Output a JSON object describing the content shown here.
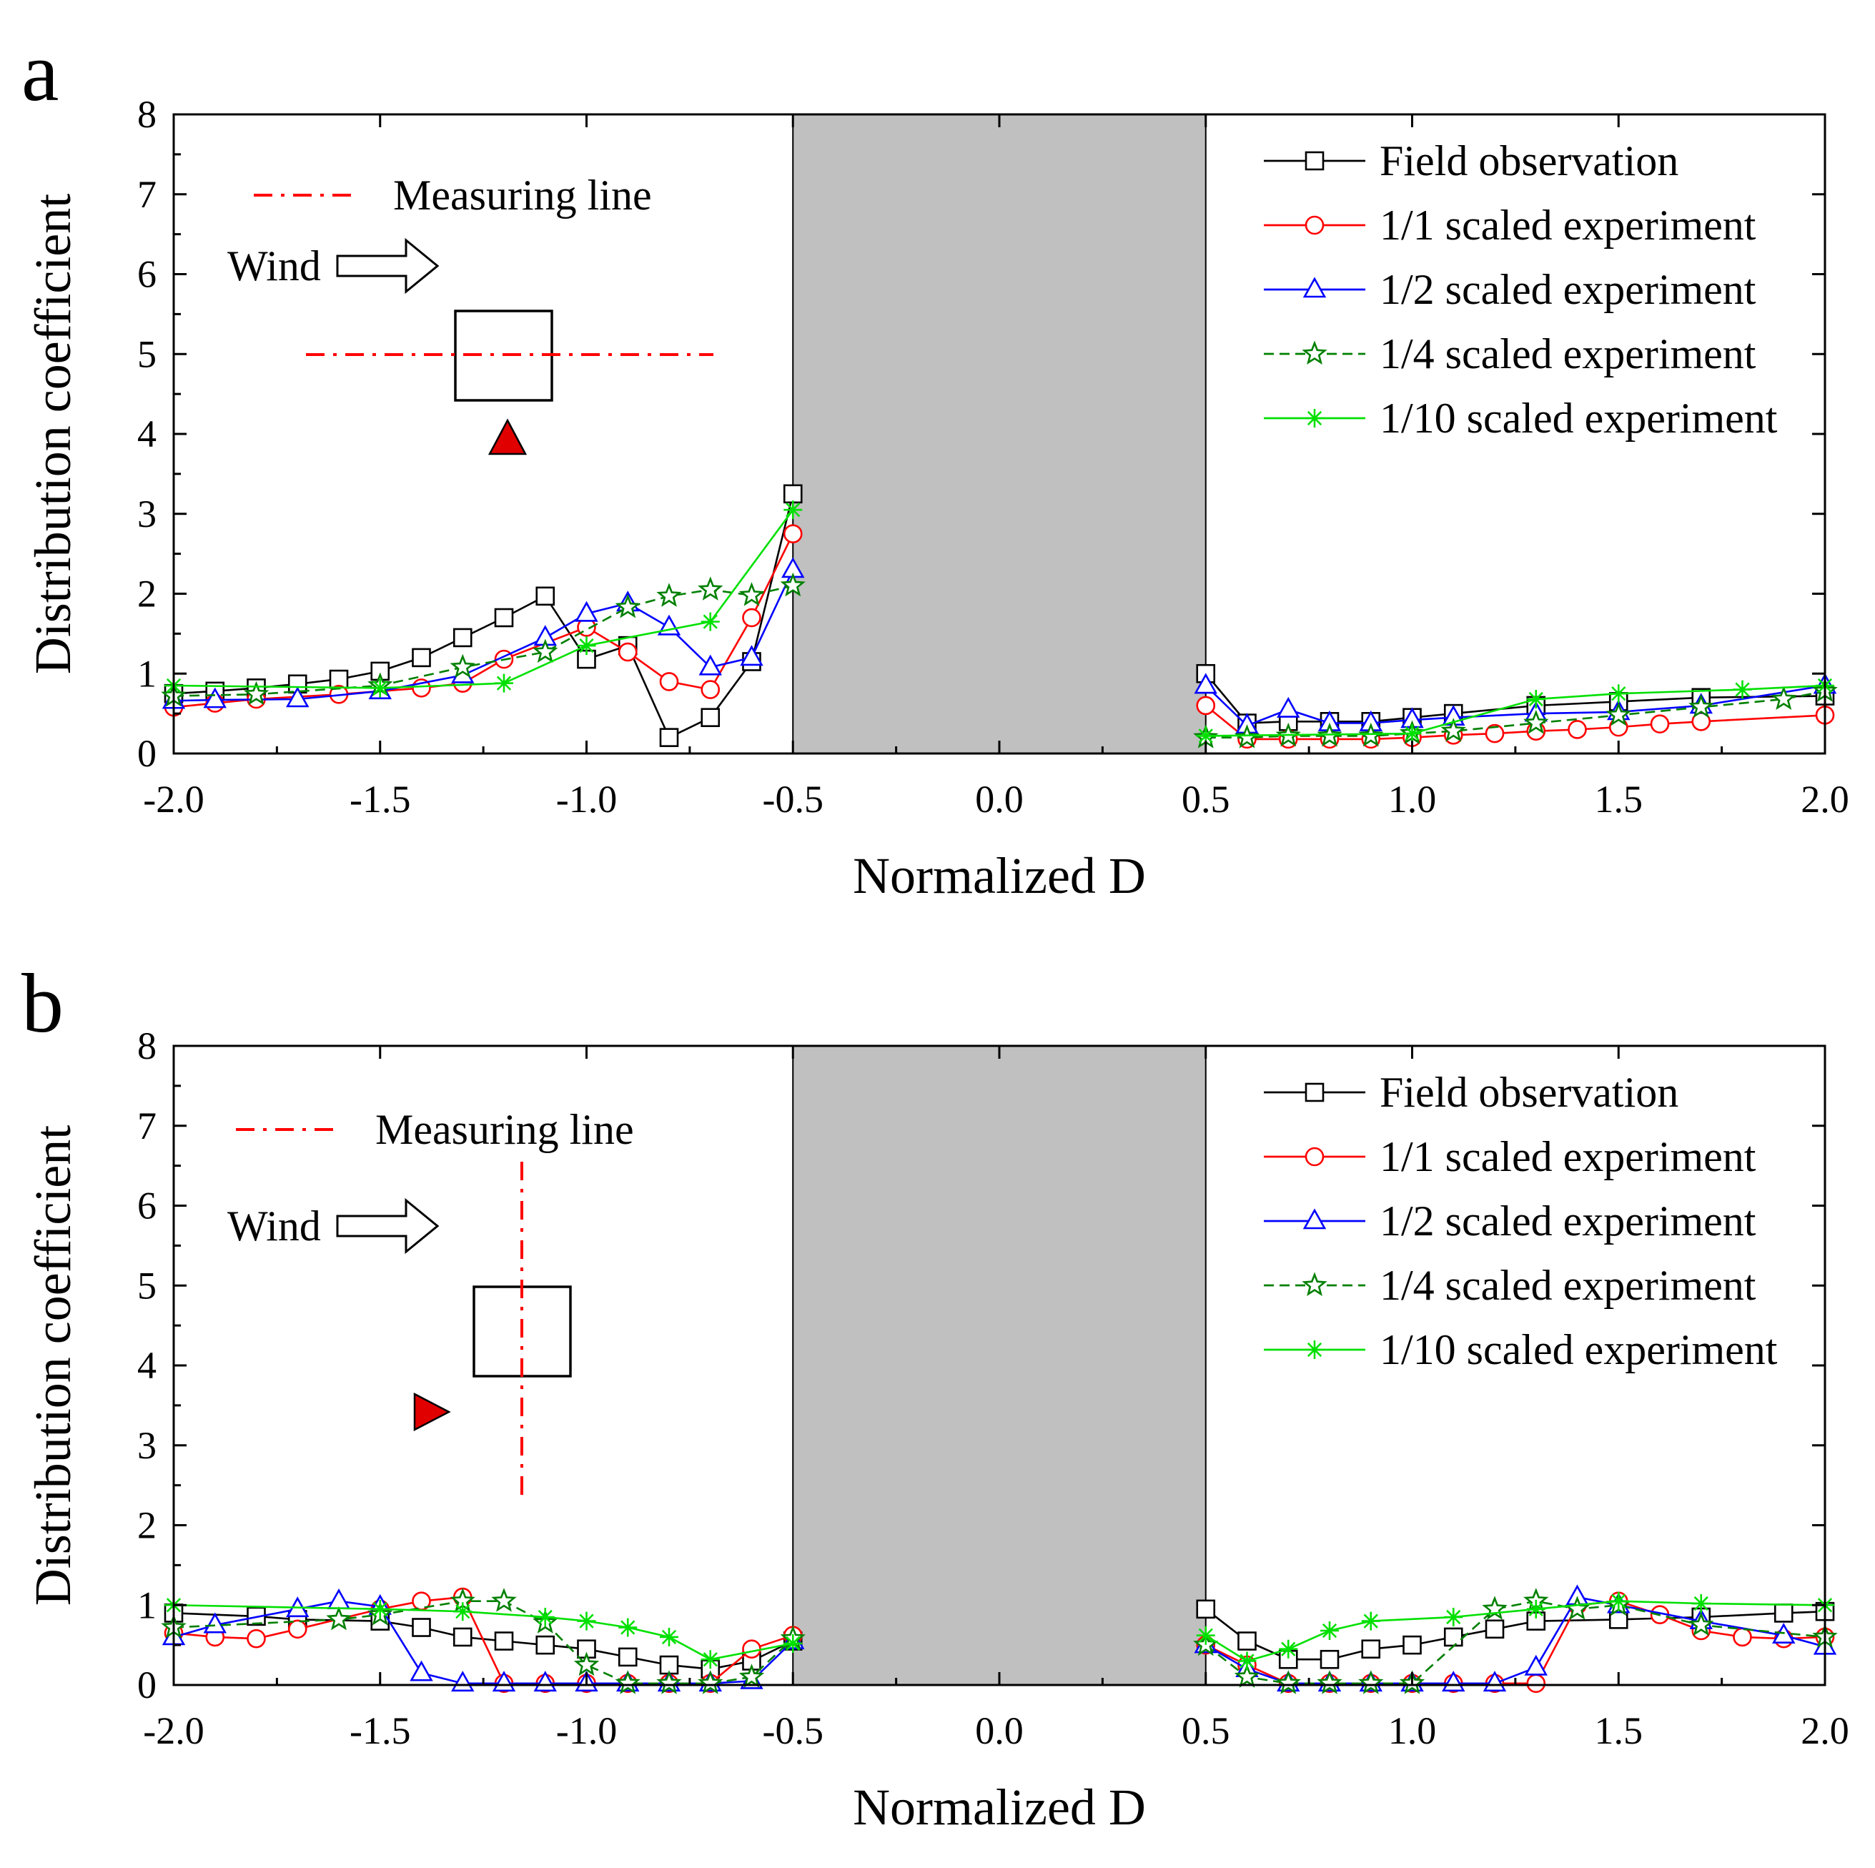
{
  "chart_data": [
    {
      "panel_label": "a",
      "type": "line",
      "xlabel": "Normalized D",
      "ylabel": "Distribution coefficient",
      "xlim": [
        -2.0,
        2.0
      ],
      "ylim": [
        0,
        8
      ],
      "x_ticks": [
        "-2.0",
        "-1.5",
        "-1.0",
        "-0.5",
        "0.0",
        "0.5",
        "1.0",
        "1.5",
        "2.0"
      ],
      "y_ticks": [
        "0",
        "1",
        "2",
        "3",
        "4",
        "5",
        "6",
        "7",
        "8"
      ],
      "building_zone": [
        -0.5,
        0.5
      ],
      "inset": {
        "measuring_line_label": "Measuring line",
        "wind_label": "Wind",
        "line_orientation": "horizontal"
      },
      "series": [
        {
          "name": "Field observation",
          "color": "#000000",
          "marker": "square",
          "x": [
            -2.0,
            -1.9,
            -1.8,
            -1.7,
            -1.6,
            -1.5,
            -1.4,
            -1.3,
            -1.2,
            -1.1,
            -1.0,
            -0.9,
            -0.8,
            -0.7,
            -0.6,
            -0.5,
            0.5,
            0.6,
            0.7,
            0.8,
            0.9,
            1.0,
            1.1,
            1.3,
            1.5,
            1.7,
            2.0
          ],
          "y": [
            0.75,
            0.78,
            0.82,
            0.87,
            0.93,
            1.03,
            1.2,
            1.45,
            1.7,
            1.97,
            1.18,
            1.35,
            0.2,
            0.45,
            1.15,
            3.25,
            1.0,
            0.38,
            0.4,
            0.4,
            0.4,
            0.45,
            0.5,
            0.6,
            0.65,
            0.7,
            0.72
          ]
        },
        {
          "name": "1/1 scaled experiment",
          "color": "#ff0000",
          "marker": "circle",
          "x": [
            -2.0,
            -1.9,
            -1.8,
            -1.6,
            -1.4,
            -1.3,
            -1.2,
            -1.0,
            -0.9,
            -0.8,
            -0.7,
            -0.6,
            -0.5,
            0.5,
            0.6,
            0.7,
            0.8,
            0.9,
            1.0,
            1.1,
            1.2,
            1.3,
            1.4,
            1.5,
            1.6,
            1.7,
            2.0
          ],
          "y": [
            0.58,
            0.63,
            0.68,
            0.74,
            0.82,
            0.88,
            1.18,
            1.58,
            1.27,
            0.9,
            0.8,
            1.7,
            2.75,
            0.6,
            0.18,
            0.18,
            0.18,
            0.18,
            0.2,
            0.23,
            0.25,
            0.28,
            0.3,
            0.33,
            0.37,
            0.4,
            0.48
          ]
        },
        {
          "name": "1/2 scaled experiment",
          "color": "#0000ff",
          "marker": "triangle",
          "x": [
            -2.0,
            -1.9,
            -1.7,
            -1.5,
            -1.3,
            -1.1,
            -1.0,
            -0.9,
            -0.8,
            -0.7,
            -0.6,
            -0.5,
            0.5,
            0.6,
            0.7,
            0.8,
            0.9,
            1.0,
            1.1,
            1.3,
            1.5,
            1.7,
            2.0
          ],
          "y": [
            0.66,
            0.67,
            0.68,
            0.78,
            0.98,
            1.45,
            1.75,
            1.88,
            1.58,
            1.08,
            1.2,
            2.3,
            0.85,
            0.35,
            0.55,
            0.38,
            0.38,
            0.42,
            0.45,
            0.5,
            0.52,
            0.6,
            0.85
          ]
        },
        {
          "name": "1/4 scaled experiment",
          "color": "#008000",
          "marker": "star",
          "dashed": true,
          "x": [
            -2.0,
            -1.8,
            -1.5,
            -1.3,
            -1.1,
            -0.9,
            -0.8,
            -0.7,
            -0.6,
            -0.5,
            0.5,
            0.6,
            0.7,
            0.8,
            0.9,
            1.0,
            1.1,
            1.3,
            1.5,
            1.7,
            1.9,
            2.0
          ],
          "y": [
            0.72,
            0.74,
            0.85,
            1.08,
            1.27,
            1.83,
            1.97,
            2.05,
            1.98,
            2.1,
            0.2,
            0.2,
            0.22,
            0.22,
            0.22,
            0.25,
            0.28,
            0.38,
            0.48,
            0.58,
            0.68,
            0.78
          ]
        },
        {
          "name": "1/10 scaled experiment",
          "color": "#00e000",
          "marker": "asterisk",
          "x": [
            -2.0,
            -1.5,
            -1.2,
            -1.0,
            -0.7,
            -0.5,
            0.5,
            1.0,
            1.3,
            1.5,
            1.8,
            2.0
          ],
          "y": [
            0.85,
            0.82,
            0.88,
            1.35,
            1.65,
            3.05,
            0.22,
            0.25,
            0.68,
            0.75,
            0.8,
            0.85
          ]
        }
      ]
    },
    {
      "panel_label": "b",
      "type": "line",
      "xlabel": "Normalized D",
      "ylabel": "Distribution coefficient",
      "xlim": [
        -2.0,
        2.0
      ],
      "ylim": [
        0,
        8
      ],
      "x_ticks": [
        "-2.0",
        "-1.5",
        "-1.0",
        "-0.5",
        "0.0",
        "0.5",
        "1.0",
        "1.5",
        "2.0"
      ],
      "y_ticks": [
        "0",
        "1",
        "2",
        "3",
        "4",
        "5",
        "6",
        "7",
        "8"
      ],
      "building_zone": [
        -0.5,
        0.5
      ],
      "inset": {
        "measuring_line_label": "Measuring line",
        "wind_label": "Wind",
        "line_orientation": "vertical"
      },
      "series": [
        {
          "name": "Field observation",
          "color": "#000000",
          "marker": "square",
          "x": [
            -2.0,
            -1.8,
            -1.7,
            -1.5,
            -1.4,
            -1.3,
            -1.2,
            -1.1,
            -1.0,
            -0.9,
            -0.8,
            -0.7,
            -0.6,
            -0.5,
            0.5,
            0.6,
            0.7,
            0.8,
            0.9,
            1.0,
            1.1,
            1.2,
            1.3,
            1.5,
            1.7,
            1.9,
            2.0
          ],
          "y": [
            0.9,
            0.86,
            0.82,
            0.8,
            0.72,
            0.6,
            0.55,
            0.5,
            0.45,
            0.35,
            0.25,
            0.2,
            0.3,
            0.55,
            0.95,
            0.55,
            0.32,
            0.32,
            0.45,
            0.5,
            0.6,
            0.7,
            0.8,
            0.82,
            0.85,
            0.9,
            0.92
          ]
        },
        {
          "name": "1/1 scaled experiment",
          "color": "#ff0000",
          "marker": "circle",
          "x": [
            -2.0,
            -1.9,
            -1.8,
            -1.7,
            -1.5,
            -1.4,
            -1.3,
            -1.2,
            -1.1,
            -1.0,
            -0.9,
            -0.8,
            -0.7,
            -0.6,
            -0.5,
            0.5,
            0.6,
            0.7,
            0.8,
            0.9,
            1.0,
            1.1,
            1.2,
            1.3,
            1.4,
            1.5,
            1.6,
            1.7,
            1.8,
            1.9,
            2.0
          ],
          "y": [
            0.65,
            0.6,
            0.58,
            0.7,
            0.95,
            1.05,
            1.1,
            0.02,
            0.02,
            0.02,
            0.02,
            0.02,
            0.02,
            0.45,
            0.62,
            0.5,
            0.25,
            0.02,
            0.02,
            0.02,
            0.02,
            0.02,
            0.02,
            0.02,
            1.0,
            1.05,
            0.88,
            0.68,
            0.6,
            0.58,
            0.6
          ]
        },
        {
          "name": "1/2 scaled experiment",
          "color": "#0000ff",
          "marker": "triangle",
          "x": [
            -2.0,
            -1.9,
            -1.7,
            -1.6,
            -1.5,
            -1.4,
            -1.3,
            -1.2,
            -1.1,
            -1.0,
            -0.9,
            -0.8,
            -0.7,
            -0.6,
            -0.5,
            0.5,
            0.6,
            0.7,
            0.8,
            0.9,
            1.0,
            1.1,
            1.2,
            1.3,
            1.4,
            1.5,
            1.7,
            1.9,
            2.0
          ],
          "y": [
            0.6,
            0.75,
            0.95,
            1.05,
            0.98,
            0.15,
            0.02,
            0.02,
            0.02,
            0.02,
            0.02,
            0.02,
            0.02,
            0.05,
            0.55,
            0.5,
            0.2,
            0.02,
            0.02,
            0.02,
            0.02,
            0.02,
            0.02,
            0.22,
            1.1,
            1.0,
            0.8,
            0.62,
            0.48
          ]
        },
        {
          "name": "1/4 scaled experiment",
          "color": "#008000",
          "marker": "star",
          "dashed": true,
          "x": [
            -2.0,
            -1.6,
            -1.5,
            -1.3,
            -1.2,
            -1.1,
            -1.0,
            -0.9,
            -0.8,
            -0.7,
            -0.6,
            -0.5,
            0.5,
            0.6,
            0.7,
            0.8,
            0.9,
            1.0,
            1.2,
            1.3,
            1.4,
            1.5,
            1.7,
            2.0
          ],
          "y": [
            0.72,
            0.82,
            0.88,
            1.05,
            1.05,
            0.78,
            0.25,
            0.02,
            0.02,
            0.02,
            0.1,
            0.58,
            0.5,
            0.1,
            0.02,
            0.02,
            0.02,
            0.02,
            0.95,
            1.05,
            0.95,
            1.0,
            0.75,
            0.6
          ]
        },
        {
          "name": "1/10 scaled experiment",
          "color": "#00e000",
          "marker": "asterisk",
          "x": [
            -2.0,
            -1.5,
            -1.3,
            -1.1,
            -1.0,
            -0.9,
            -0.8,
            -0.7,
            -0.5,
            0.5,
            0.6,
            0.7,
            0.8,
            0.9,
            1.1,
            1.3,
            1.5,
            1.7,
            2.0
          ],
          "y": [
            1.0,
            0.95,
            0.92,
            0.85,
            0.8,
            0.72,
            0.6,
            0.32,
            0.52,
            0.62,
            0.3,
            0.45,
            0.68,
            0.8,
            0.85,
            0.95,
            1.05,
            1.02,
            1.0
          ]
        }
      ]
    }
  ]
}
